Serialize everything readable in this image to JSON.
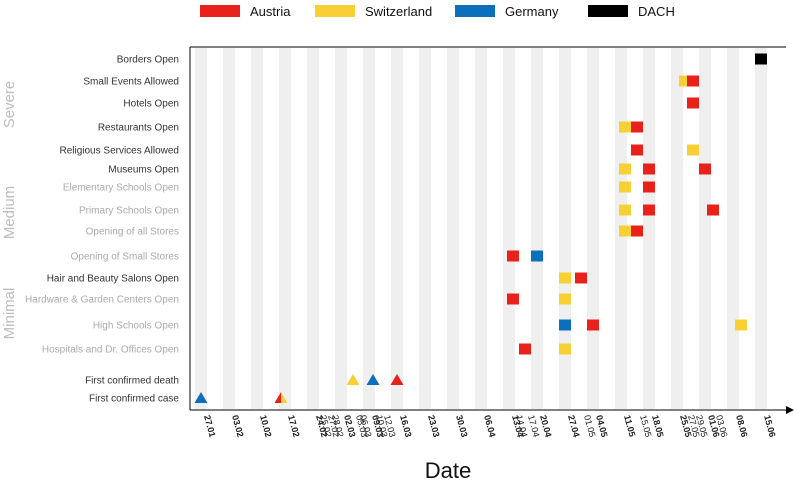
{
  "chart_data": {
    "type": "timeline",
    "xlabel": "Date",
    "colors": {
      "Austria": "#e8221b",
      "Switzerland": "#f7d035",
      "Germany": "#0c6fbb",
      "DACH": "#000000"
    },
    "legend": [
      {
        "name": "Austria",
        "color": "#e8221b"
      },
      {
        "name": "Switzerland",
        "color": "#f7d035"
      },
      {
        "name": "Germany",
        "color": "#0c6fbb"
      },
      {
        "name": "DACH",
        "color": "#000000"
      }
    ],
    "severity_groups": [
      {
        "label": "Severe",
        "from_row": 0,
        "to_row": 4
      },
      {
        "label": "Medium",
        "from_row": 5,
        "to_row": 9
      },
      {
        "label": "Minimal",
        "from_row": 10,
        "to_row": 13
      }
    ],
    "rows": [
      {
        "label": "Borders Open",
        "light": false
      },
      {
        "label": "Small Events Allowed",
        "light": false
      },
      {
        "label": "Hotels Open",
        "light": false
      },
      {
        "label": "Restaurants Open",
        "light": false
      },
      {
        "label": "Religious Services Allowed",
        "light": false
      },
      {
        "label": "Museums Open",
        "light": false
      },
      {
        "label": "Elementary Schools Open",
        "light": true
      },
      {
        "label": "Primary Schools Open",
        "light": true
      },
      {
        "label": "Opening of all Stores",
        "light": true
      },
      {
        "label": "Opening of Small Stores",
        "light": true
      },
      {
        "label": "Hair and Beauty Salons Open",
        "light": false
      },
      {
        "label": "Hardware & Garden Centers Open",
        "light": true
      },
      {
        "label": "High Schools Open",
        "light": true
      },
      {
        "label": "Hospitals and Dr. Offices Open",
        "light": true
      },
      {
        "label": "First confirmed death",
        "light": false
      },
      {
        "label": "First confirmed case",
        "light": false
      }
    ],
    "ticks": [
      {
        "label": "27.01",
        "day": 0,
        "bold": true
      },
      {
        "label": "03.02",
        "day": 7,
        "bold": true
      },
      {
        "label": "10.02",
        "day": 14,
        "bold": true
      },
      {
        "label": "17.02",
        "day": 21,
        "bold": true
      },
      {
        "label": "24.02",
        "day": 28,
        "bold": true
      },
      {
        "label": "25.02",
        "day": 29,
        "bold": false
      },
      {
        "label": "27.02",
        "day": 31,
        "bold": false
      },
      {
        "label": "28.02",
        "day": 32,
        "bold": false
      },
      {
        "label": "02.03",
        "day": 35,
        "bold": true
      },
      {
        "label": "05.03",
        "day": 38,
        "bold": false
      },
      {
        "label": "06.03",
        "day": 39,
        "bold": false
      },
      {
        "label": "09.03",
        "day": 42,
        "bold": true
      },
      {
        "label": "10.03",
        "day": 43,
        "bold": false
      },
      {
        "label": "12.03",
        "day": 45,
        "bold": false
      },
      {
        "label": "16.03",
        "day": 49,
        "bold": true
      },
      {
        "label": "23.03",
        "day": 56,
        "bold": true
      },
      {
        "label": "30.03",
        "day": 63,
        "bold": true
      },
      {
        "label": "06.04",
        "day": 70,
        "bold": true
      },
      {
        "label": "13.04",
        "day": 77,
        "bold": true
      },
      {
        "label": "14.04",
        "day": 78,
        "bold": false
      },
      {
        "label": "17.04",
        "day": 81,
        "bold": false
      },
      {
        "label": "20.04",
        "day": 84,
        "bold": true
      },
      {
        "label": "27.04",
        "day": 91,
        "bold": true
      },
      {
        "label": "01.05",
        "day": 95,
        "bold": false
      },
      {
        "label": "04.05",
        "day": 98,
        "bold": true
      },
      {
        "label": "11.05",
        "day": 105,
        "bold": true
      },
      {
        "label": "15.05",
        "day": 109,
        "bold": false
      },
      {
        "label": "18.05",
        "day": 112,
        "bold": true
      },
      {
        "label": "25.05",
        "day": 119,
        "bold": true
      },
      {
        "label": "27.05",
        "day": 121,
        "bold": false
      },
      {
        "label": "29.05",
        "day": 123,
        "bold": false
      },
      {
        "label": "01.06",
        "day": 126,
        "bold": true
      },
      {
        "label": "03.06",
        "day": 128,
        "bold": false
      },
      {
        "label": "08.06",
        "day": 133,
        "bold": true
      },
      {
        "label": "15.06",
        "day": 140,
        "bold": true
      }
    ],
    "events": [
      {
        "row": 0,
        "day": 140,
        "country": "DACH",
        "shape": "square"
      },
      {
        "row": 1,
        "day": 121,
        "country": "Switzerland",
        "shape": "square"
      },
      {
        "row": 1,
        "day": 123,
        "country": "Austria",
        "shape": "square"
      },
      {
        "row": 2,
        "day": 123,
        "country": "Austria",
        "shape": "square"
      },
      {
        "row": 3,
        "day": 106,
        "country": "Switzerland",
        "shape": "square"
      },
      {
        "row": 3,
        "day": 109,
        "country": "Austria",
        "shape": "square"
      },
      {
        "row": 4,
        "day": 109,
        "country": "Austria",
        "shape": "square"
      },
      {
        "row": 4,
        "day": 123,
        "country": "Switzerland",
        "shape": "square"
      },
      {
        "row": 5,
        "day": 106,
        "country": "Switzerland",
        "shape": "square"
      },
      {
        "row": 5,
        "day": 112,
        "country": "Austria",
        "shape": "square"
      },
      {
        "row": 5,
        "day": 126,
        "country": "Austria",
        "shape": "square"
      },
      {
        "row": 6,
        "day": 106,
        "country": "Switzerland",
        "shape": "square"
      },
      {
        "row": 6,
        "day": 112,
        "country": "Austria",
        "shape": "square"
      },
      {
        "row": 7,
        "day": 106,
        "country": "Switzerland",
        "shape": "square"
      },
      {
        "row": 7,
        "day": 112,
        "country": "Austria",
        "shape": "square"
      },
      {
        "row": 7,
        "day": 128,
        "country": "Austria",
        "shape": "square"
      },
      {
        "row": 8,
        "day": 106,
        "country": "Switzerland",
        "shape": "square"
      },
      {
        "row": 8,
        "day": 109,
        "country": "Austria",
        "shape": "square"
      },
      {
        "row": 9,
        "day": 78,
        "country": "Austria",
        "shape": "square"
      },
      {
        "row": 9,
        "day": 84,
        "country": "Germany",
        "shape": "square"
      },
      {
        "row": 10,
        "day": 91,
        "country": "Switzerland",
        "shape": "square"
      },
      {
        "row": 10,
        "day": 95,
        "country": "Austria",
        "shape": "square"
      },
      {
        "row": 11,
        "day": 78,
        "country": "Austria",
        "shape": "square"
      },
      {
        "row": 11,
        "day": 91,
        "country": "Switzerland",
        "shape": "square"
      },
      {
        "row": 12,
        "day": 91,
        "country": "Germany",
        "shape": "square"
      },
      {
        "row": 12,
        "day": 98,
        "country": "Austria",
        "shape": "square"
      },
      {
        "row": 12,
        "day": 135,
        "country": "Switzerland",
        "shape": "square"
      },
      {
        "row": 13,
        "day": 81,
        "country": "Austria",
        "shape": "square"
      },
      {
        "row": 13,
        "day": 91,
        "country": "Switzerland",
        "shape": "square"
      },
      {
        "row": 14,
        "day": 38,
        "country": "Switzerland",
        "shape": "triangle"
      },
      {
        "row": 14,
        "day": 43,
        "country": "Germany",
        "shape": "triangle"
      },
      {
        "row": 14,
        "day": 49,
        "country": "Austria",
        "shape": "triangle"
      },
      {
        "row": 15,
        "day": 0,
        "country": "Germany",
        "shape": "triangle"
      },
      {
        "row": 15,
        "day": 20,
        "country": "Austria",
        "shape": "triangle-half",
        "second_country": "Switzerland"
      }
    ]
  }
}
